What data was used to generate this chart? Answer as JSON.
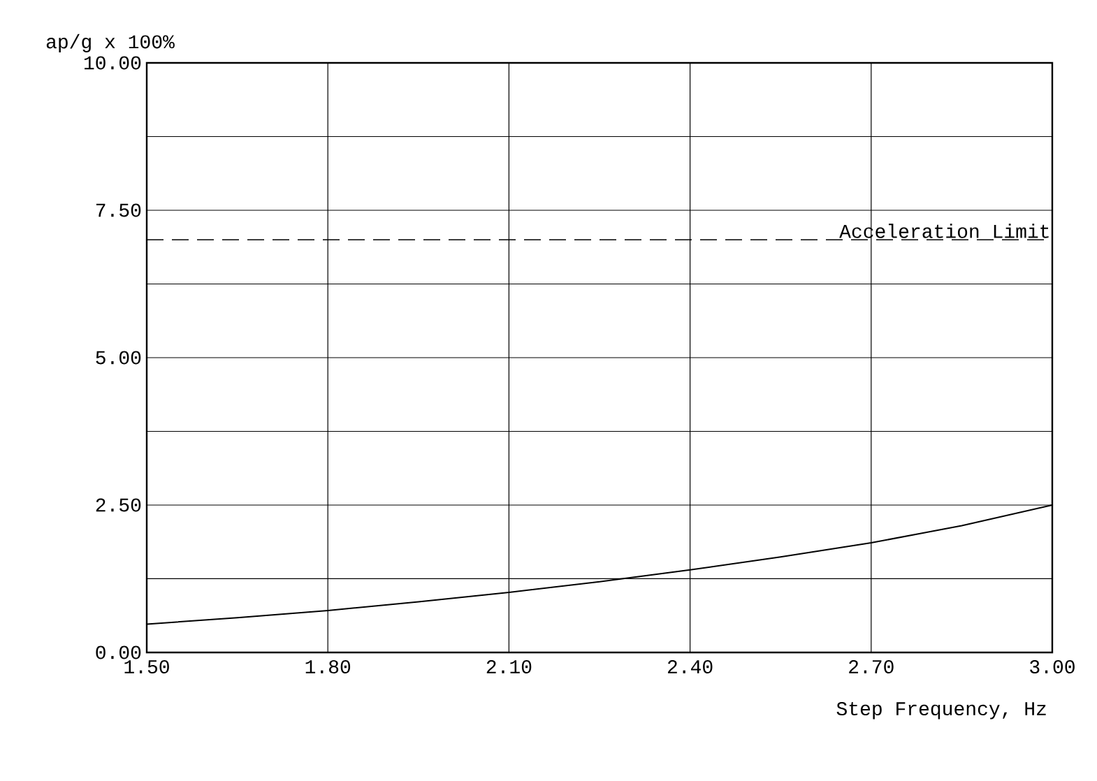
{
  "chart_data": {
    "type": "line",
    "xlabel": "Step Frequency, Hz",
    "ylabel": "ap/g x 100%",
    "x": [
      1.5,
      1.65,
      1.8,
      1.95,
      2.1,
      2.25,
      2.4,
      2.55,
      2.7,
      2.85,
      3.0
    ],
    "series": [
      {
        "color": "#000000",
        "values": [
          0.48,
          0.59,
          0.71,
          0.86,
          1.02,
          1.2,
          1.4,
          1.62,
          1.86,
          2.15,
          2.5
        ]
      }
    ],
    "xlim": [
      1.5,
      3.0
    ],
    "ylim": [
      0,
      10
    ],
    "xticks": [
      {
        "value": 1.5,
        "label": "1.50"
      },
      {
        "value": 1.8,
        "label": "1.80"
      },
      {
        "value": 2.1,
        "label": "2.10"
      },
      {
        "value": 2.4,
        "label": "2.40"
      },
      {
        "value": 2.7,
        "label": "2.70"
      },
      {
        "value": 3.0,
        "label": "3.00"
      }
    ],
    "yticks": [
      {
        "value": 0,
        "label": "0.00"
      },
      {
        "value": 1.25,
        "label": null
      },
      {
        "value": 2.5,
        "label": "2.50"
      },
      {
        "value": 3.75,
        "label": null
      },
      {
        "value": 5,
        "label": "5.00"
      },
      {
        "value": 6.25,
        "label": null
      },
      {
        "value": 7.5,
        "label": "7.50"
      },
      {
        "value": 8.75,
        "label": null
      },
      {
        "value": 10,
        "label": "10.00"
      }
    ],
    "ref_lines": [
      {
        "axis": "y",
        "value": 7,
        "label": "Acceleration Limit",
        "line_style": "dashed"
      }
    ],
    "grid": true,
    "marker": "none",
    "line_style": "solid"
  }
}
